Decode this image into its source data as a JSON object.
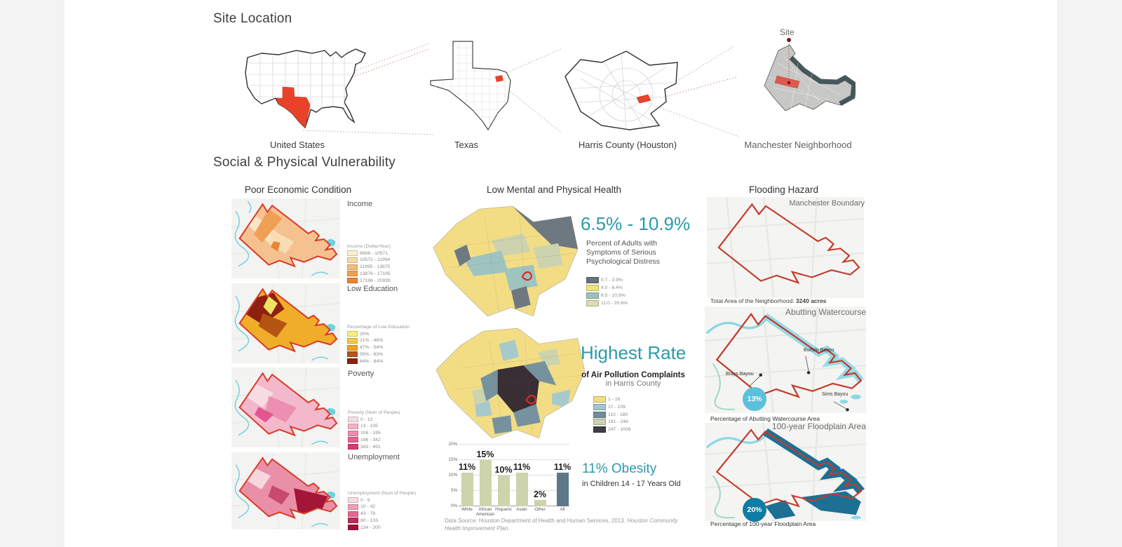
{
  "site_location": {
    "title": "Site Location",
    "site_label": "Site",
    "maps": [
      {
        "caption": "United States"
      },
      {
        "caption": "Texas"
      },
      {
        "caption": "Harris County (Houston)"
      },
      {
        "caption": "Manchester Neighborhood"
      }
    ]
  },
  "vulnerability": {
    "title": "Social & Physical Vulnerability",
    "economic": {
      "title": "Poor Economic Condition",
      "income": {
        "label": "Income",
        "legend_title": "Income (Dollar/Year)",
        "legend": [
          {
            "range": "8906 - 10571",
            "color": "#faeed2"
          },
          {
            "range": "10572 - 11994",
            "color": "#f7d9a8"
          },
          {
            "range": "11995 - 13875",
            "color": "#f5bc7e"
          },
          {
            "range": "13876 - 17195",
            "color": "#f0a052"
          },
          {
            "range": "17196 - 20939",
            "color": "#e8872e"
          }
        ]
      },
      "education": {
        "label": "Low Education",
        "legend_title": "Percentage of Low Education",
        "legend": [
          {
            "range": "20%",
            "color": "#f5ef7d"
          },
          {
            "range": "21% - 46%",
            "color": "#f0ca4b"
          },
          {
            "range": "47% - 54%",
            "color": "#eda227"
          },
          {
            "range": "55% - 63%",
            "color": "#b0551c"
          },
          {
            "range": "64% - 84%",
            "color": "#8e2010"
          }
        ]
      },
      "poverty": {
        "label": "Poverty",
        "legend_title": "Poverty (Num of People)",
        "legend": [
          {
            "range": "0 - 12",
            "color": "#f4dde3"
          },
          {
            "range": "13 - 105",
            "color": "#f2b3c4"
          },
          {
            "range": "106 - 195",
            "color": "#ee8cab"
          },
          {
            "range": "196 - 342",
            "color": "#e85f92"
          },
          {
            "range": "343 - 491",
            "color": "#e03572"
          }
        ]
      },
      "unemployment": {
        "label": "Unemployment",
        "legend_title": "Unemployment (Num of People)",
        "legend": [
          {
            "range": "0 - 9",
            "color": "#f6dde2"
          },
          {
            "range": "10 - 42",
            "color": "#ef9fb4"
          },
          {
            "range": "43 - 79",
            "color": "#e4688c"
          },
          {
            "range": "80 - 133",
            "color": "#c2275c"
          },
          {
            "range": "134 - 200",
            "color": "#9c1538"
          }
        ]
      }
    },
    "health": {
      "title": "Low Mental and Physical Health",
      "distress": {
        "stat": "6.5% - 10.9%",
        "desc": [
          "Percent of Adults with",
          "Symptoms of Serious",
          "Psychological Distress"
        ],
        "legend": [
          {
            "range": "0.7 - 3.9%",
            "color": "#68727b"
          },
          {
            "range": "4.0 - 6.4%",
            "color": "#ece47a"
          },
          {
            "range": "6.5 - 10.9%",
            "color": "#9dc0ba"
          },
          {
            "range": "11.0 - 20.6%",
            "color": "#dcdbb4"
          }
        ]
      },
      "pollution": {
        "stat": "Highest Rate",
        "desc_bold": "of Air Pollution Complaints",
        "desc_rest": "in Harris County",
        "legend": [
          {
            "range": "1 - 16",
            "color": "#f2dd85"
          },
          {
            "range": "17 - 109",
            "color": "#a3c6c9"
          },
          {
            "range": "110 - 180",
            "color": "#708d97"
          },
          {
            "range": "181 - 246",
            "color": "#ccd3ae"
          },
          {
            "range": "247 - 1006",
            "color": "#3b3f42"
          }
        ]
      },
      "obesity": {
        "stat": "11% Obesity",
        "desc": "in Children 14 - 17 Years Old"
      },
      "source_prefix": "Data Source: Houston Department of Health and Human Services. 2013. ",
      "source_italic": "Houston Community Health Improvement Plan."
    },
    "flooding": {
      "title": "Flooding Hazard",
      "boundary": {
        "label": "Manchester Boundary",
        "note_prefix": "Total Area of the Neighborhood: ",
        "note_value": "3240 acres"
      },
      "watercourse": {
        "label": "Abutting Watercourse",
        "pct": "13%",
        "caption": "Percentage of Abutting Watercourse Area",
        "bayous": [
          {
            "name": "Buffalo Bayou"
          },
          {
            "name": "Brays Bayou"
          },
          {
            "name": "Sims Bayou"
          }
        ]
      },
      "floodplain": {
        "label": "100-year Floodplain Area",
        "pct": "20%",
        "caption": "Percentage of 100-year Floodplain Area"
      }
    }
  },
  "chart_data": {
    "type": "bar",
    "title": "",
    "categories": [
      "White",
      "African American",
      "Hispanic",
      "Asian",
      "Other",
      "All"
    ],
    "values": [
      11,
      15,
      10,
      11,
      2,
      11
    ],
    "value_labels": [
      "11%",
      "15%",
      "10%",
      "11%",
      "2%",
      "11%"
    ],
    "ylabel": "",
    "ylim": [
      0,
      20
    ],
    "yticks": [
      "0%",
      "5%",
      "10%",
      "15%",
      "20%"
    ],
    "grid": true,
    "bar_color": "#cdd3ab",
    "highlight_color": "#5d7788",
    "highlight_index": 5
  }
}
